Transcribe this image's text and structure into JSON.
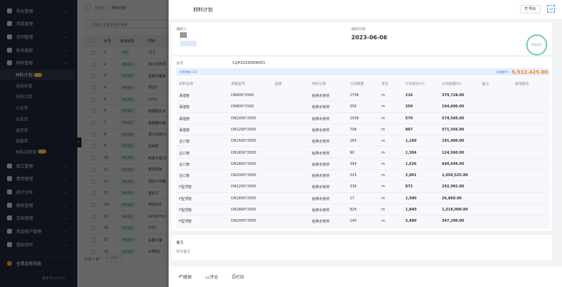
{
  "sidebar": {
    "groups_top": [
      "投标管理",
      "项目管理",
      "合同管理",
      "财务报款",
      "物料管理"
    ],
    "material_items": [
      "材料计划",
      "采购申请",
      "采购订单",
      "入库单",
      "出库单",
      "退货单",
      "调拨单",
      "材料结算单"
    ],
    "badge_label": "推荐",
    "groups_bottom": [
      "施工管理",
      "费用管理",
      "统计分析",
      "商机管理",
      "文档管理",
      "资金账户管理",
      "基础资料"
    ],
    "full_nav": "全票流程导航",
    "version": "版本号:v4.0.0"
  },
  "main": {
    "breadcrumb_home": "工作台",
    "breadcrumb_current": "/ 材料计划",
    "search_placeholder": "请输入关键字进行搜索",
    "headers": [
      "序号",
      "审批状态",
      "项目"
    ],
    "rows": [
      [
        "1",
        "草稿",
        "111",
        "draft"
      ],
      [
        "2",
        "审批通过",
        "四川市政项",
        "ok"
      ],
      [
        "3",
        "审批通过",
        "壹融大厦采",
        "ok"
      ],
      [
        "4",
        "审批通过",
        "测试1",
        "ok"
      ],
      [
        "5",
        "审批通过",
        "1212",
        "ok"
      ],
      [
        "6",
        "审批通过",
        "南钢建达大",
        "ok"
      ],
      [
        "7",
        "审批通过",
        "珠穆朗玛峰",
        "ok"
      ],
      [
        "8",
        "审批拒绝",
        "滨江花城12",
        "rej"
      ],
      [
        "9",
        "审批通过",
        "交换机",
        "ok"
      ],
      [
        "10",
        "审批通过",
        "新建工程-见",
        "ok"
      ],
      [
        "11",
        "审批通过",
        "惠阳项目",
        "ok"
      ],
      [
        "12",
        "审批通过",
        "测试三环路",
        "ok"
      ],
      [
        "13",
        "审批通过",
        "害车牛",
        "ok"
      ],
      [
        "14",
        "审批通过",
        "培训425",
        "ok"
      ],
      [
        "15",
        "审批通过",
        "A23G2511",
        "ok"
      ],
      [
        "16",
        "审批通过",
        "LYSC",
        "ok"
      ],
      [
        "17",
        "审批通过",
        "车都大厦",
        "ok"
      ],
      [
        "18",
        "审批通过",
        "lx测试2",
        "ok"
      ]
    ],
    "selected": "已选 0 条",
    "batch": "删除"
  },
  "drawer": {
    "title": "材料计划",
    "export": "导出",
    "fullscreen_label": "全屏",
    "creator_label": "编制人",
    "date_label": "编制日期",
    "date": "2023-06-06",
    "stamp_text": "审批通过",
    "order_label": "单号",
    "order_no": "CLJH20230606001",
    "detail_label": "计划明细 (12)",
    "total_label": "总金额(¥):",
    "total": "5,912,425.00",
    "columns": [
      "材料名称",
      "规格型号",
      "品牌",
      "材料分类",
      "计划数量",
      "单位",
      "计划单价(¥)",
      "计划金额(¥)",
      "备注",
      "其他属性"
    ],
    "items": [
      [
        "承插管",
        "DN600*2500",
        "",
        "给排水管材",
        "1758",
        "m",
        "216",
        "379,728.00"
      ],
      [
        "承插管",
        "DN800*2500",
        "",
        "给排水管材",
        "556",
        "m",
        "350",
        "194,600.00"
      ],
      [
        "承插管",
        "DN1000*2500",
        "",
        "给排水管材",
        "1008",
        "m",
        "570",
        "574,560.00"
      ],
      [
        "承插管",
        "DN1200*2500",
        "",
        "给排水管材",
        "708",
        "m",
        "807",
        "571,356.00"
      ],
      [
        "企口管",
        "DN1500*2500",
        "",
        "给排水管材",
        "165",
        "m",
        "1,160",
        "191,400.00"
      ],
      [
        "企口管",
        "DN1650*2500",
        "",
        "给排水管材",
        "90",
        "m",
        "1,384",
        "124,560.00"
      ],
      [
        "企口管",
        "DN1800*2500",
        "",
        "给排水管材",
        "394",
        "m",
        "1,626",
        "640,644.00"
      ],
      [
        "企口管",
        "DN2000*2500",
        "",
        "给排水管材",
        "525",
        "m",
        "2,001",
        "1,050,525.00"
      ],
      [
        "F型顶管",
        "DN1200*2500",
        "",
        "给排水管材",
        "336",
        "m",
        "872",
        "292,992.00"
      ],
      [
        "F型顶管",
        "DN1650*2500",
        "",
        "给排水管材",
        "17",
        "m",
        "1,580",
        "26,860.00"
      ],
      [
        "F型顶管",
        "DN1800*2500",
        "",
        "给排水管材",
        "825",
        "m",
        "1,840",
        "1,518,000.00"
      ],
      [
        "F型顶管",
        "DN2000*2500",
        "",
        "给排水管材",
        "140",
        "m",
        "2,480",
        "347,200.00"
      ]
    ],
    "remark_label": "备注",
    "remark_value": "暂无备注",
    "footer": {
      "revoke": "撤销",
      "comment": "评论",
      "print": "打印"
    }
  },
  "colors": {
    "accent": "#1677ff",
    "total": "#f5821f",
    "stamp": "#3fb27f",
    "sidebar": "#1d2433"
  }
}
